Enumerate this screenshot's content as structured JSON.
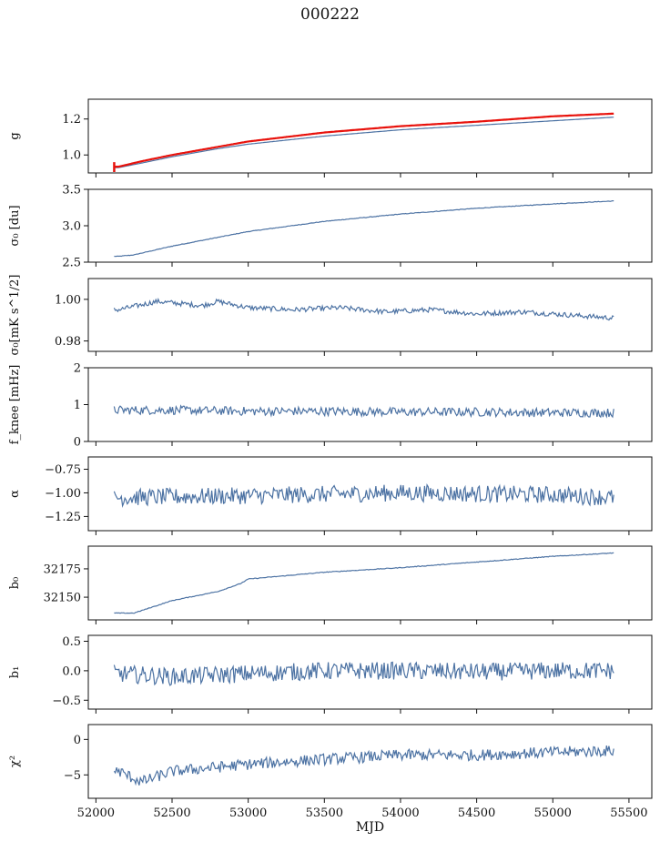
{
  "figure": {
    "title": "000222"
  },
  "chart_data": {
    "type": "line",
    "title": "000222",
    "xlabel": "MJD",
    "xlim": [
      51950,
      55650
    ],
    "xticks": [
      52000,
      52500,
      53000,
      53500,
      54000,
      54500,
      55000,
      55500
    ],
    "x_range_data": [
      52120,
      55400
    ],
    "colors": {
      "line": "#4c72a3",
      "fit": "#e8120c"
    },
    "panels": [
      {
        "id": "g",
        "ylabel": "g",
        "ylim": [
          0.9,
          1.31
        ],
        "yticks": [
          1.0,
          1.2
        ],
        "ytick_labels": [
          "1.0",
          "1.2"
        ],
        "series": [
          {
            "x": [
              52150,
              52300,
              52500,
              52800,
              53000,
              53500,
              54000,
              54500,
              55000,
              55400
            ],
            "y": [
              0.93,
              0.955,
              0.99,
              1.035,
              1.06,
              1.105,
              1.14,
              1.165,
              1.19,
              1.21
            ],
            "color": "#4c72a3"
          },
          {
            "x": [
              52150,
              52300,
              52500,
              52800,
              53000,
              53500,
              54000,
              54500,
              55000,
              55400
            ],
            "y": [
              0.935,
              0.965,
              1.0,
              1.045,
              1.075,
              1.125,
              1.16,
              1.185,
              1.215,
              1.23
            ],
            "color": "#e8120c"
          }
        ]
      },
      {
        "id": "sigma0-du",
        "ylabel": "σ₀ [du]",
        "ylim": [
          2.5,
          3.5
        ],
        "yticks": [
          2.5,
          3.0,
          3.5
        ],
        "ytick_labels": [
          "2.5",
          "3.0",
          "3.5"
        ],
        "series": [
          {
            "x": [
              52150,
              52250,
              52500,
              52800,
              53000,
              53500,
              54000,
              54500,
              55000,
              55400
            ],
            "y": [
              2.58,
              2.6,
              2.72,
              2.84,
              2.92,
              3.06,
              3.16,
              3.24,
              3.3,
              3.34
            ],
            "color": "#4c72a3"
          }
        ]
      },
      {
        "id": "sigma0-mk",
        "ylabel": "σ₀[mK s^1/2]",
        "ylim": [
          0.975,
          1.01
        ],
        "yticks": [
          0.98,
          1.0
        ],
        "ytick_labels": [
          "0.98",
          "1.00"
        ],
        "series": [
          {
            "x": [
              52150,
              52400,
              52700,
              52800,
              53000,
              53300,
              53600,
              53900,
              54200,
              54500,
              54800,
              55000,
              55200,
              55400
            ],
            "y": [
              0.995,
              0.999,
              0.997,
              0.999,
              0.996,
              0.995,
              0.996,
              0.994,
              0.995,
              0.993,
              0.994,
              0.993,
              0.992,
              0.991
            ],
            "color": "#4c72a3"
          }
        ]
      },
      {
        "id": "fknee",
        "ylabel": "f_knee [mHz]",
        "ylim": [
          0,
          2
        ],
        "yticks": [
          0,
          1,
          2
        ],
        "ytick_labels": [
          "0",
          "1",
          "2"
        ],
        "series": [
          {
            "x": [
              52150,
              52500,
              53000,
              53500,
              54000,
              54500,
              55000,
              55400
            ],
            "y": [
              0.85,
              0.85,
              0.82,
              0.82,
              0.8,
              0.8,
              0.78,
              0.78
            ],
            "color": "#4c72a3"
          }
        ]
      },
      {
        "id": "alpha",
        "ylabel": "α",
        "ylim": [
          -1.4,
          -0.62
        ],
        "yticks": [
          -1.25,
          -1.0,
          -0.75
        ],
        "ytick_labels": [
          "−1.25",
          "−1.00",
          "−0.75"
        ],
        "series": [
          {
            "x": [
              52150,
              53000,
              54000,
              55000,
              55400
            ],
            "y": [
              -1.05,
              -1.03,
              -1.0,
              -1.02,
              -1.05
            ],
            "color": "#4c72a3"
          }
        ]
      },
      {
        "id": "b0",
        "ylabel": "b₀",
        "ylim": [
          32130,
          32195
        ],
        "yticks": [
          32150,
          32175
        ],
        "ytick_labels": [
          "32150",
          "32175"
        ],
        "series": [
          {
            "x": [
              52150,
              52250,
              52500,
              52800,
              52950,
              53000,
              53500,
              54000,
              54500,
              55000,
              55400
            ],
            "y": [
              32136,
              32136,
              32147,
              32155,
              32162,
              32166,
              32172,
              32176,
              32181,
              32186,
              32189
            ],
            "color": "#4c72a3"
          }
        ]
      },
      {
        "id": "b1",
        "ylabel": "b₁",
        "ylim": [
          -0.65,
          0.6
        ],
        "yticks": [
          -0.5,
          0.0,
          0.5
        ],
        "ytick_labels": [
          "−0.5",
          "0.0",
          "0.5"
        ],
        "series": [
          {
            "x": [
              52150,
              52500,
              53000,
              53500,
              54000,
              54500,
              55000,
              55400
            ],
            "y": [
              -0.05,
              -0.1,
              -0.05,
              0.0,
              0.0,
              -0.02,
              0.0,
              0.0
            ],
            "color": "#4c72a3"
          }
        ]
      },
      {
        "id": "chi2",
        "ylabel": "χ²",
        "ylim": [
          -8.3,
          2.1
        ],
        "yticks": [
          -5,
          0
        ],
        "ytick_labels": [
          "−5",
          "0"
        ],
        "series": [
          {
            "x": [
              52150,
              52300,
              52500,
              53000,
              53500,
              54000,
              54500,
              55000,
              55400
            ],
            "y": [
              -4.5,
              -6.0,
              -4.5,
              -3.5,
              -2.8,
              -2.2,
              -2.2,
              -1.8,
              -1.6
            ],
            "color": "#4c72a3"
          }
        ]
      }
    ]
  }
}
